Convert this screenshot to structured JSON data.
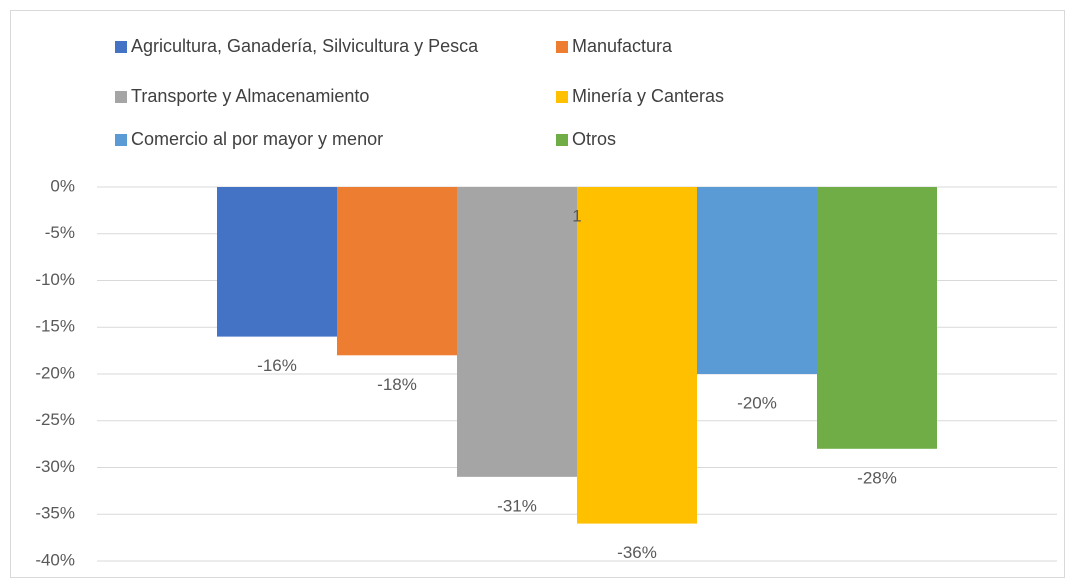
{
  "chart_data": {
    "type": "bar",
    "categories": [
      "1"
    ],
    "series": [
      {
        "name": "Agricultura, Ganadería, Silvicultura y Pesca",
        "color": "#4472c4",
        "values": [
          -16
        ],
        "value_labels": [
          "-16%"
        ]
      },
      {
        "name": "Manufactura",
        "color": "#ed7d31",
        "values": [
          -18
        ],
        "value_labels": [
          "-18%"
        ]
      },
      {
        "name": "Transporte y Almacenamiento",
        "color": "#a5a5a5",
        "values": [
          -31
        ],
        "value_labels": [
          "-31%"
        ]
      },
      {
        "name": "Minería y Canteras",
        "color": "#ffc000",
        "values": [
          -36
        ],
        "value_labels": [
          "-36%"
        ]
      },
      {
        "name": "Comercio al por mayor y menor",
        "color": "#5b9bd5",
        "values": [
          -20
        ],
        "value_labels": [
          "-20%"
        ]
      },
      {
        "name": "Otros",
        "color": "#70ad47",
        "values": [
          -28
        ],
        "value_labels": [
          "-28%"
        ]
      }
    ],
    "ylim": [
      -40,
      0
    ],
    "yticks": [
      {
        "value": 0,
        "label": "0%"
      },
      {
        "value": -5,
        "label": "-5%"
      },
      {
        "value": -10,
        "label": "-10%"
      },
      {
        "value": -15,
        "label": "-15%"
      },
      {
        "value": -20,
        "label": "-20%"
      },
      {
        "value": -25,
        "label": "-25%"
      },
      {
        "value": -30,
        "label": "-30%"
      },
      {
        "value": -35,
        "label": "-35%"
      },
      {
        "value": -40,
        "label": "-40%"
      }
    ],
    "grid": true,
    "legend": "top"
  }
}
